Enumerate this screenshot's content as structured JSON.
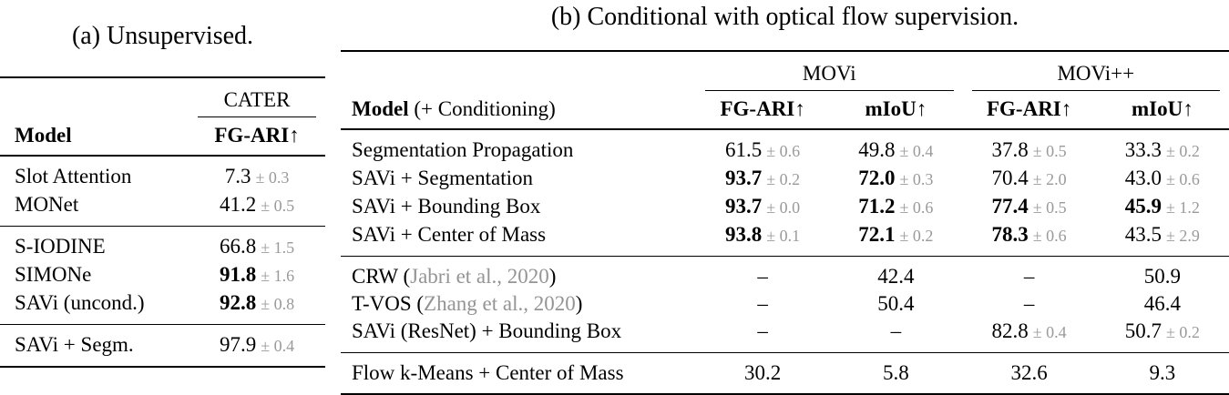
{
  "colors": {
    "stddev_gray": "#9a9a9a",
    "citation_gray": "#949494",
    "rule_black": "#000000"
  },
  "panel_a": {
    "caption": "(a) Unsupervised.",
    "group_header": "CATER",
    "col_model": "Model",
    "col_metric": "FG-ARI↑",
    "rows": [
      {
        "model": "Slot Attention",
        "value": "7.3",
        "err": "± 0.3"
      },
      {
        "model": "MONet",
        "value": "41.2",
        "err": "± 0.5"
      },
      {
        "model": "S-IODINE",
        "value": "66.8",
        "err": "± 1.5"
      },
      {
        "model": "SIMONe",
        "value": "91.8",
        "err": "± 1.6"
      },
      {
        "model": "SAVi (uncond.)",
        "value": "92.8",
        "err": "± 0.8"
      },
      {
        "model": "SAVi + Segm.",
        "value": "97.9",
        "err": "± 0.4"
      }
    ]
  },
  "panel_b": {
    "caption": "(b) Conditional with optical flow supervision.",
    "group_headers": [
      "MOVi",
      "MOVi++"
    ],
    "col_model_bold": "Model",
    "col_model_rest": " (+ Conditioning)",
    "col_metrics": [
      "FG-ARI↑",
      "mIoU↑",
      "FG-ARI↑",
      "mIoU↑"
    ],
    "rows": [
      {
        "model": "Segmentation Propagation",
        "cells": [
          {
            "v": "61.5",
            "e": "± 0.6"
          },
          {
            "v": "49.8",
            "e": "± 0.4"
          },
          {
            "v": "37.8",
            "e": "± 0.5"
          },
          {
            "v": "33.3",
            "e": "± 0.2"
          }
        ]
      },
      {
        "model": "SAVi + Segmentation",
        "cells": [
          {
            "v": "93.7",
            "e": "± 0.2"
          },
          {
            "v": "72.0",
            "e": "± 0.3"
          },
          {
            "v": "70.4",
            "e": "± 2.0"
          },
          {
            "v": "43.0",
            "e": "± 0.6"
          }
        ]
      },
      {
        "model": "SAVi + Bounding Box",
        "cells": [
          {
            "v": "93.7",
            "e": "± 0.0"
          },
          {
            "v": "71.2",
            "e": "± 0.6"
          },
          {
            "v": "77.4",
            "e": "± 0.5"
          },
          {
            "v": "45.9",
            "e": "± 1.2"
          }
        ]
      },
      {
        "model": "SAVi + Center of Mass",
        "cells": [
          {
            "v": "93.8",
            "e": "± 0.1"
          },
          {
            "v": "72.1",
            "e": "± 0.2"
          },
          {
            "v": "78.3",
            "e": "± 0.6"
          },
          {
            "v": "43.5",
            "e": "± 2.9"
          }
        ]
      },
      {
        "model_pre": "CRW (",
        "cite": "Jabri et al., 2020",
        "model_post": ")",
        "cells": [
          {
            "v": "–"
          },
          {
            "v": "42.4"
          },
          {
            "v": "–"
          },
          {
            "v": "50.9"
          }
        ]
      },
      {
        "model_pre": "T-VOS (",
        "cite": "Zhang et al., 2020",
        "model_post": ")",
        "cells": [
          {
            "v": "–"
          },
          {
            "v": "50.4"
          },
          {
            "v": "–"
          },
          {
            "v": "46.4"
          }
        ]
      },
      {
        "model": "SAVi (ResNet) + Bounding Box",
        "cells": [
          {
            "v": "–"
          },
          {
            "v": "–"
          },
          {
            "v": "82.8",
            "e": "± 0.4"
          },
          {
            "v": "50.7",
            "e": "± 0.2"
          }
        ]
      },
      {
        "model": "Flow k-Means + Center of Mass",
        "cells": [
          {
            "v": "30.2"
          },
          {
            "v": "5.8"
          },
          {
            "v": "32.6"
          },
          {
            "v": "9.3"
          }
        ]
      }
    ]
  }
}
